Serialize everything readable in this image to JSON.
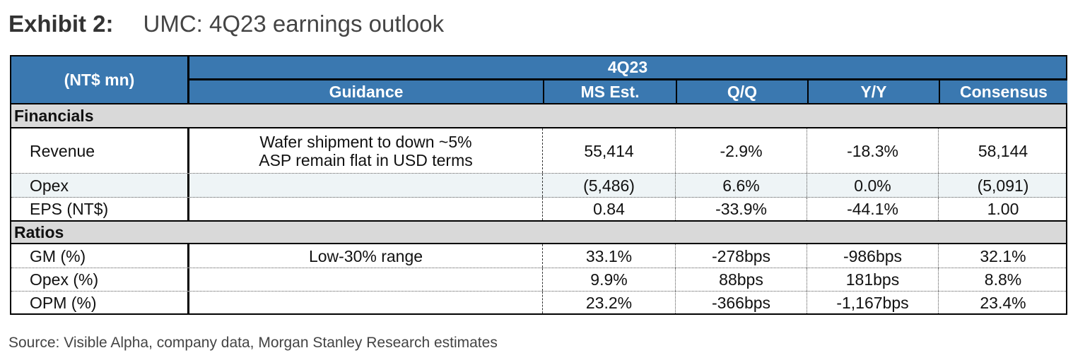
{
  "exhibit": {
    "label": "Exhibit 2:",
    "title": "UMC: 4Q23 earnings outlook"
  },
  "table": {
    "unit_header": "(NT$ mn)",
    "period_header": "4Q23",
    "columns": [
      "Guidance",
      "MS Est.",
      "Q/Q",
      "Y/Y",
      "Consensus"
    ],
    "sections": [
      {
        "name": "Financials",
        "rows": [
          {
            "label": "Revenue",
            "guidance_line1": "Wafer shipment to down ~5%",
            "guidance_line2": "ASP remain flat in USD terms",
            "ms_est": "55,414",
            "qq": "-2.9%",
            "yy": "-18.3%",
            "consensus": "58,144"
          },
          {
            "label": "Opex",
            "guidance": "",
            "ms_est": "(5,486)",
            "qq": "6.6%",
            "yy": "0.0%",
            "consensus": "(5,091)"
          },
          {
            "label": "EPS (NT$)",
            "guidance": "",
            "ms_est": "0.84",
            "qq": "-33.9%",
            "yy": "-44.1%",
            "consensus": "1.00"
          }
        ]
      },
      {
        "name": "Ratios",
        "rows": [
          {
            "label": "GM (%)",
            "guidance": "Low-30% range",
            "ms_est": "33.1%",
            "qq": "-278bps",
            "yy": "-986bps",
            "consensus": "32.1%"
          },
          {
            "label": "Opex (%)",
            "guidance": "",
            "ms_est": "9.9%",
            "qq": "88bps",
            "yy": "181bps",
            "consensus": "8.8%"
          },
          {
            "label": "OPM (%)",
            "guidance": "",
            "ms_est": "23.2%",
            "qq": "-366bps",
            "yy": "-1,167bps",
            "consensus": "23.4%"
          }
        ]
      }
    ]
  },
  "source": "Source: Visible Alpha, company data, Morgan Stanley Research estimates"
}
